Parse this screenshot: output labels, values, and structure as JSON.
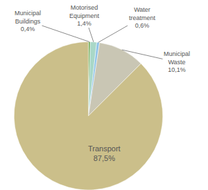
{
  "chart_data": {
    "type": "pie",
    "categories": [
      "Municipal Buildings",
      "Motorised Equipment",
      "Water treatment",
      "Municipal Waste",
      "Transport"
    ],
    "values": [
      0.4,
      1.4,
      0.6,
      10.1,
      87.5
    ],
    "value_labels": [
      "0,4%",
      "1,4%",
      "0,6%",
      "10,1%",
      "87,5%"
    ],
    "colors": [
      "#6aa84f",
      "#a9d8c8",
      "#8fc3e8",
      "#c9c6b4",
      "#cbbf8a"
    ],
    "data_labels": true
  }
}
